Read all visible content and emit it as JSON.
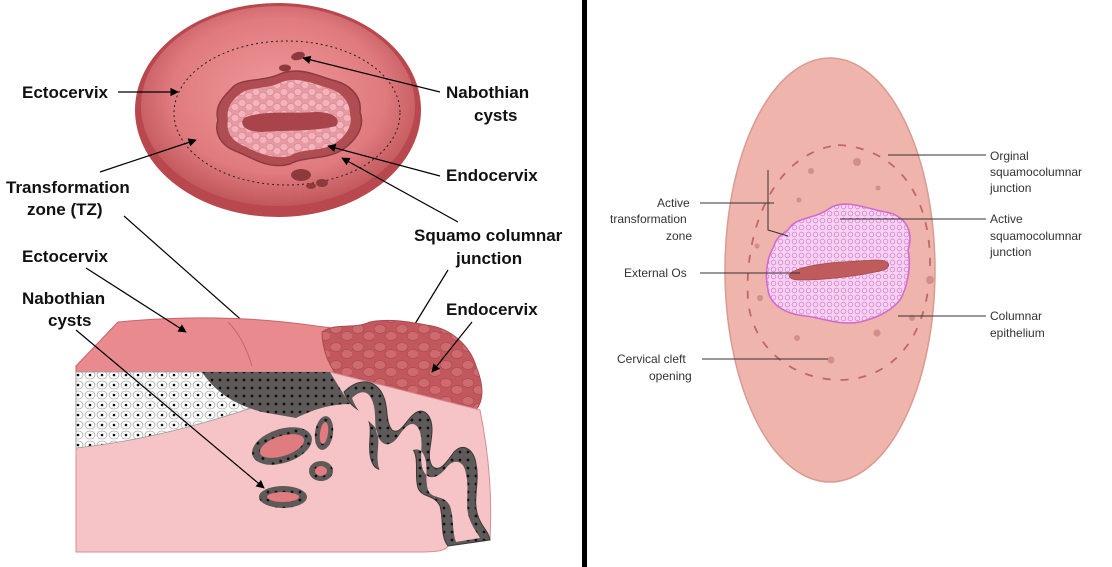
{
  "colors": {
    "divider": "#000000",
    "ectocervix_outer": "#c95b5e",
    "ectocervix_inner": "#e98487",
    "endocervix": "#c2585d",
    "columnar_cells": "#f4b4bd",
    "os_canal": "#b44d52",
    "tissue_pink": "#efb0b0",
    "stroma": "#f6c3c6",
    "squamous_layer": "#fbfbfb",
    "gland_lining": "#5e5a5a",
    "right_panel_oval": "#efb4ab",
    "right_panel_columnar": "#e07fd8"
  },
  "left_top": {
    "ectocervix": "Ectocervix",
    "nabothian_cysts_line1": "Nabothian",
    "nabothian_cysts_line2": "cysts",
    "endocervix": "Endocervix",
    "transformation_zone_line1": "Transformation",
    "transformation_zone_line2": "zone (TZ)",
    "squamo_columnar_line1": "Squamo columnar",
    "squamo_columnar_line2": "junction"
  },
  "left_bottom": {
    "ectocervix": "Ectocervix",
    "nabothian_cysts_line1": "Nabothian",
    "nabothian_cysts_line2": "cysts",
    "endocervix": "Endocervix"
  },
  "right_panel": {
    "original_scj_line1": "Orginal",
    "original_scj_line2": "squamocolumnar",
    "original_scj_line3": "junction",
    "active_tz_line1": "Active",
    "active_tz_line2": "transformation",
    "active_tz_line3": "zone",
    "active_scj_line1": "Active",
    "active_scj_line2": "squamocolumnar",
    "active_scj_line3": "junction",
    "external_os": "External Os",
    "columnar_line1": "Columnar",
    "columnar_line2": "epithelium",
    "cervical_cleft_line1": "Cervical cleft",
    "cervical_cleft_line2": "opening"
  }
}
